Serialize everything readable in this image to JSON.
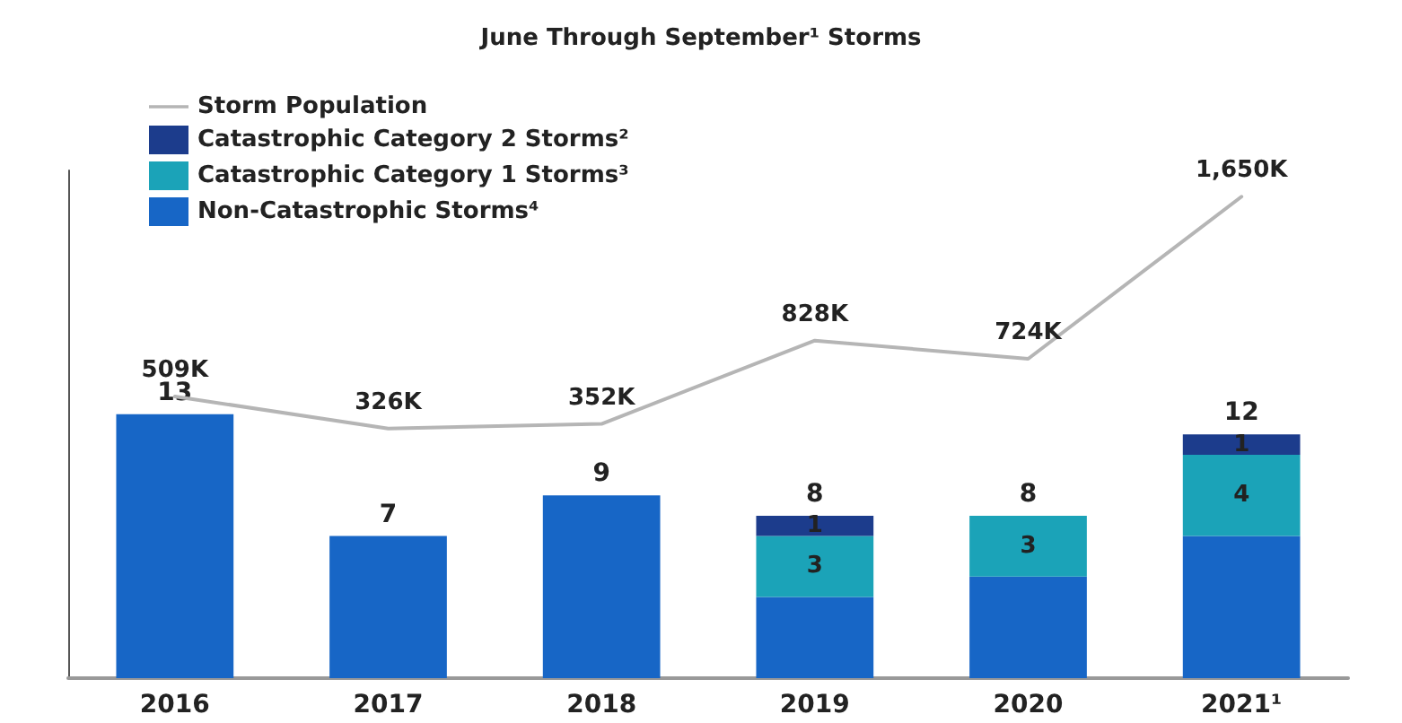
{
  "chart_data": {
    "type": "bar",
    "title": "June Through September¹ Storms",
    "stacked": true,
    "categories": [
      "2016",
      "2017",
      "2018",
      "2019",
      "2020",
      "2021¹"
    ],
    "series": [
      {
        "name": "Non-Catastrophic Storms⁴",
        "color": "#1766c6",
        "values": [
          13,
          7,
          9,
          4,
          5,
          7
        ],
        "value_labels": [
          null,
          null,
          null,
          null,
          null,
          null
        ]
      },
      {
        "name": "Catastrophic Category 1 Storms³",
        "color": "#1ba3b8",
        "values": [
          0,
          0,
          0,
          3,
          3,
          4
        ],
        "value_labels": [
          null,
          null,
          null,
          "3",
          "3",
          "4"
        ]
      },
      {
        "name": "Catastrophic Category 2 Storms²",
        "color": "#1c3c8c",
        "values": [
          0,
          0,
          0,
          1,
          0,
          1
        ],
        "value_labels": [
          null,
          null,
          null,
          "1",
          null,
          "1"
        ]
      },
      {
        "name": "Storm Population",
        "type": "line",
        "axis": "y2",
        "color": "#b5b5b5",
        "values": [
          509,
          326,
          352,
          828,
          724,
          1650
        ],
        "value_labels": [
          "509K",
          "326K",
          "352K",
          "828K",
          "724K",
          "1,650K"
        ]
      }
    ],
    "totals": [
      "13",
      "7",
      "9",
      "8",
      "8",
      "12"
    ],
    "ylim": [
      0,
      25
    ],
    "y2lim": [
      -1100,
      1800
    ],
    "legend": "top left",
    "marker": "none"
  }
}
